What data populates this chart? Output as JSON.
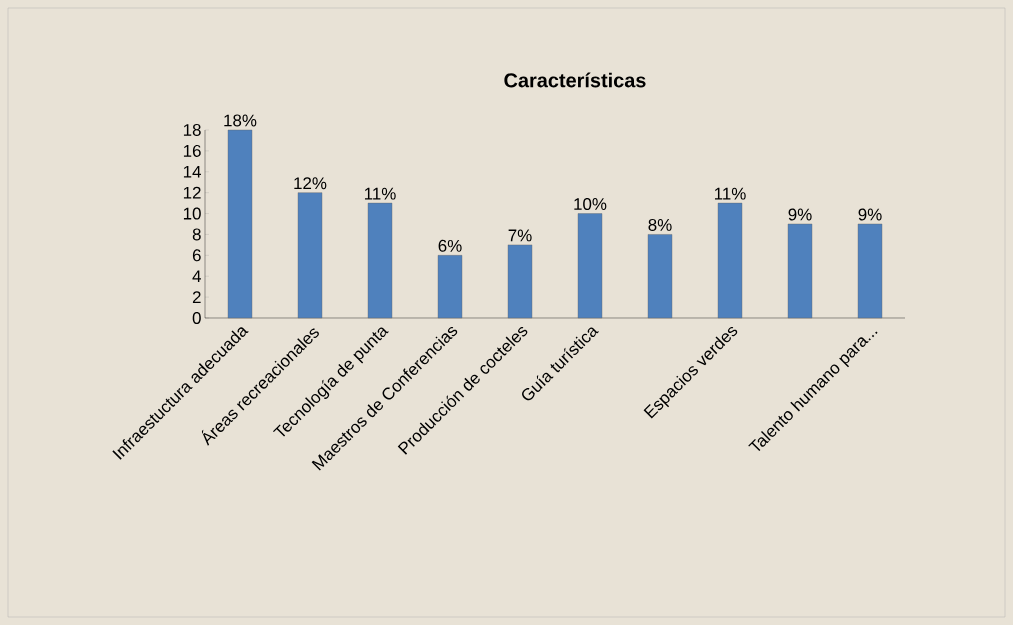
{
  "chart_data": {
    "type": "bar",
    "title": "Características",
    "categories": [
      "Infraestuctura adecuada",
      "Áreas recreacionales",
      "Tecnología de punta",
      "Maestros de Conferencias",
      "Producción de cocteles",
      "Guía turística",
      null,
      "Espacios verdes",
      null,
      "Talento humano para..."
    ],
    "values": [
      18,
      12,
      11,
      6,
      7,
      10,
      8,
      11,
      9,
      9
    ],
    "value_labels": [
      "18%",
      "12%",
      "11%",
      "6%",
      "7%",
      "10%",
      "8%",
      "11%",
      "9%",
      "9%"
    ],
    "color": "#4f81bd",
    "ylim": [
      0,
      18
    ],
    "yticks": [
      0,
      2,
      4,
      6,
      8,
      10,
      12,
      14,
      16,
      18
    ],
    "grid": false
  }
}
